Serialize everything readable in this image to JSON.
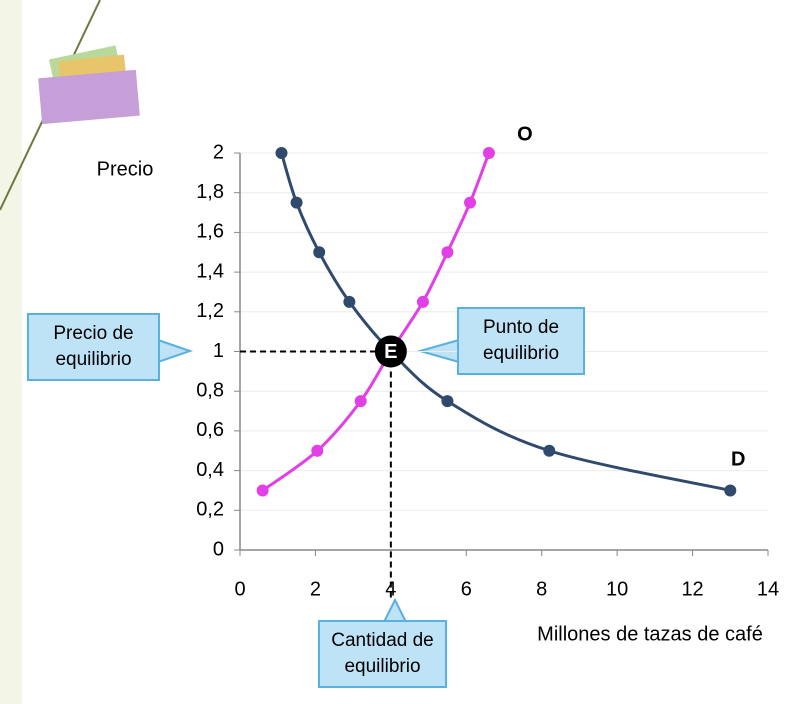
{
  "chart_data": {
    "type": "line",
    "ylabel": "Precio",
    "xlabel": "Millones de tazas de café",
    "xlim": [
      0,
      14
    ],
    "xticks": [
      0,
      2,
      4,
      6,
      8,
      10,
      12,
      14
    ],
    "ylim": [
      0,
      2
    ],
    "yticks": [
      0,
      {
        "value": 0.2,
        "label": "0,2"
      },
      {
        "value": 0.4,
        "label": "0,4"
      },
      {
        "value": 0.6,
        "label": "0,6"
      },
      {
        "value": 0.8,
        "label": "0,8"
      },
      1,
      {
        "value": 1.2,
        "label": "1,2"
      },
      {
        "value": 1.4,
        "label": "1,4"
      },
      {
        "value": 1.6,
        "label": "1,6"
      },
      {
        "value": 1.8,
        "label": "1,8"
      },
      2
    ],
    "grid": true,
    "series": [
      {
        "name": "D",
        "color": "#2f4a6d",
        "x": [
          1.1,
          1.5,
          2.1,
          2.9,
          4,
          5.5,
          8.2,
          13
        ],
        "values": [
          2,
          1.75,
          1.5,
          1.25,
          1,
          0.75,
          0.5,
          0.3
        ]
      },
      {
        "name": "O",
        "color": "#e23fe6",
        "x": [
          0.6,
          2.05,
          3.2,
          4,
          4.85,
          5.5,
          6.1,
          6.6
        ],
        "values": [
          0.3,
          0.5,
          0.75,
          1,
          1.25,
          1.5,
          1.75,
          2
        ]
      }
    ],
    "equilibrium": {
      "label": "E",
      "x": 4,
      "y": 1
    },
    "annotations": [
      "Precio de equilibrio",
      "Punto de equilibrio",
      "Cantidad de equilibrio"
    ]
  }
}
